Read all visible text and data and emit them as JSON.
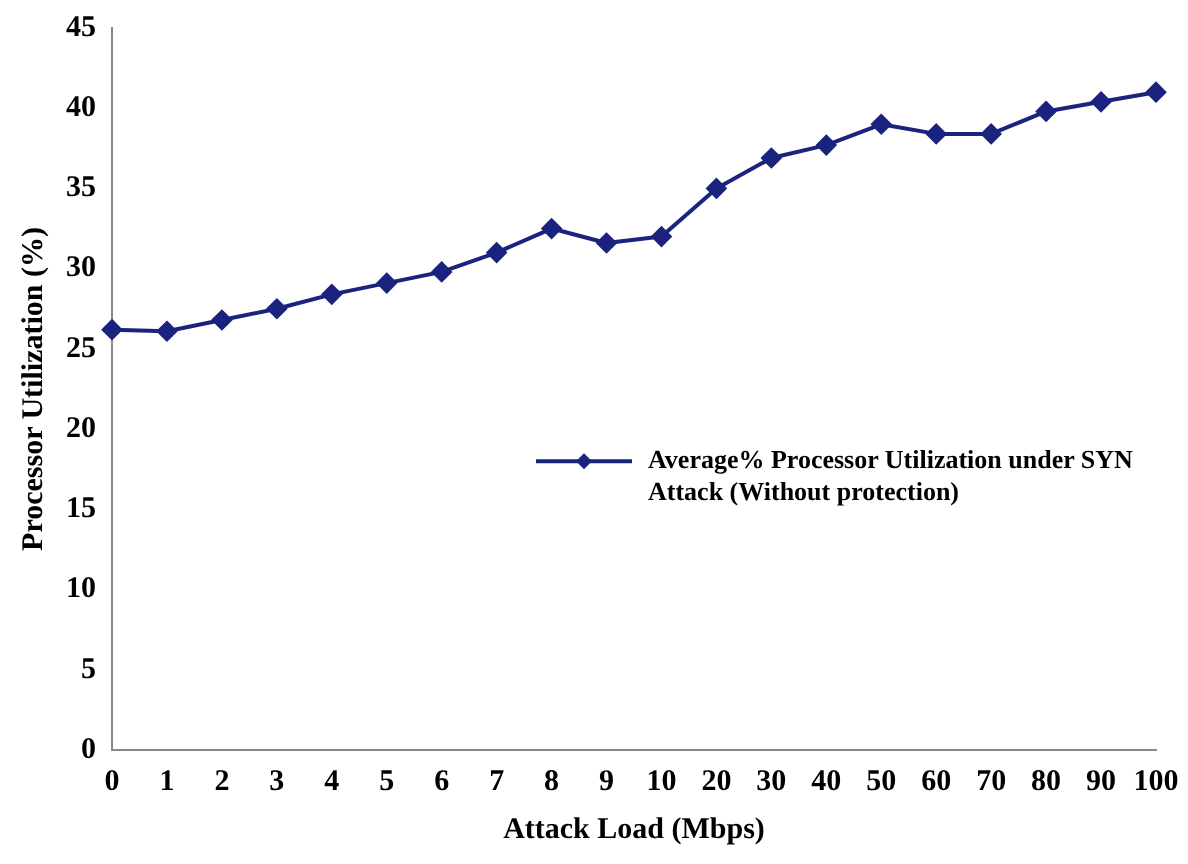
{
  "chart_data": {
    "type": "line",
    "xlabel": "Attack Load (Mbps)",
    "ylabel": "Processor Utilization (%)",
    "categories": [
      "0",
      "1",
      "2",
      "3",
      "4",
      "5",
      "6",
      "7",
      "8",
      "9",
      "10",
      "20",
      "30",
      "40",
      "50",
      "60",
      "70",
      "80",
      "90",
      "100"
    ],
    "series": [
      {
        "name": "Average% Processor Utilization under SYN Attack (Without protection)",
        "color": "#1a237e",
        "values": [
          26.2,
          26.1,
          26.8,
          27.5,
          28.4,
          29.1,
          29.8,
          31.0,
          32.5,
          31.6,
          32.0,
          35.0,
          36.9,
          37.7,
          39.0,
          38.4,
          38.4,
          39.8,
          40.4,
          41.0
        ]
      }
    ],
    "ylim": [
      0,
      45
    ],
    "yticks": [
      0,
      5,
      10,
      15,
      20,
      25,
      30,
      35,
      40,
      45
    ],
    "grid": false,
    "legend": "right",
    "marker": "diamond",
    "line_style": "solid"
  }
}
